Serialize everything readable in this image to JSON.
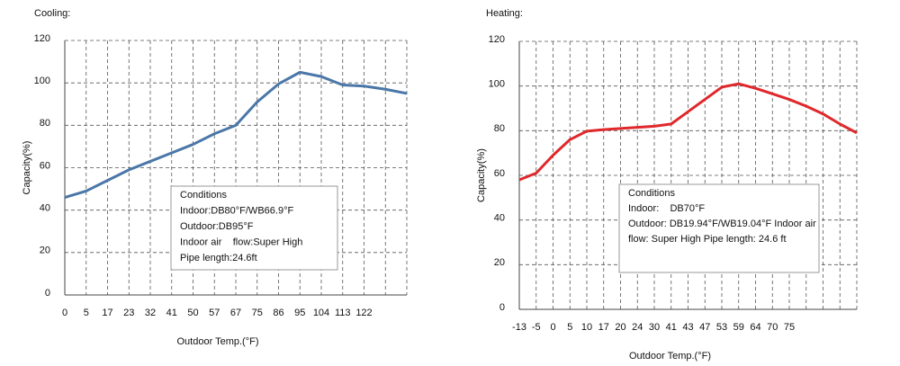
{
  "chart_data": [
    {
      "type": "line",
      "title": "Cooling:",
      "y_label": "Capacity(%)",
      "x_label": "Outdoor Temp.(°F)",
      "categories": [
        "0",
        "5",
        "17",
        "23",
        "32",
        "41",
        "50",
        "57",
        "67",
        "75",
        "86",
        "95",
        "104",
        "113",
        "122",
        null,
        null
      ],
      "series": [
        {
          "name": "Cooling",
          "color": "#4a77a8",
          "values": [
            46,
            49,
            54,
            59,
            63,
            67,
            71,
            76,
            80,
            91,
            99.5,
            105,
            103,
            99,
            98.5,
            97,
            95
          ]
        }
      ],
      "ylim": [
        0,
        120
      ],
      "yticks": [
        0,
        20,
        40,
        60,
        80,
        100,
        120
      ],
      "grid": true,
      "annotation": [
        "Conditions",
        "Indoor:DB80°F/WB66.9°F",
        "Outdoor:DB95°F",
        "Indoor air    flow:Super High",
        "Pipe length:24.6ft"
      ]
    },
    {
      "type": "line",
      "title": "Heating:",
      "y_label": "Capacity(%)",
      "x_label": "Outdoor Temp.(°F)",
      "categories": [
        "-13",
        "-5",
        "0",
        "5",
        "10",
        "17",
        "20",
        "24",
        "30",
        "41",
        "43",
        "47",
        "53",
        "59",
        "64",
        "70",
        "75",
        null,
        null,
        null,
        null
      ],
      "series": [
        {
          "name": "Heating",
          "color": "#e0282b",
          "values": [
            58,
            61,
            69,
            76,
            79.8,
            80.5,
            81,
            81.5,
            82,
            83,
            88.5,
            94,
            99.5,
            101,
            99,
            96.5,
            94,
            91,
            87.5,
            83,
            79
          ]
        }
      ],
      "ylim": [
        0,
        120
      ],
      "yticks": [
        0,
        20,
        40,
        60,
        80,
        100,
        120
      ],
      "grid": true,
      "annotation": [
        "Conditions",
        "Indoor:    DB70°F",
        "Outdoor: DB19.94°F/WB19.04°F Indoor air",
        "flow: Super High Pipe length: 24.6 ft"
      ]
    }
  ]
}
